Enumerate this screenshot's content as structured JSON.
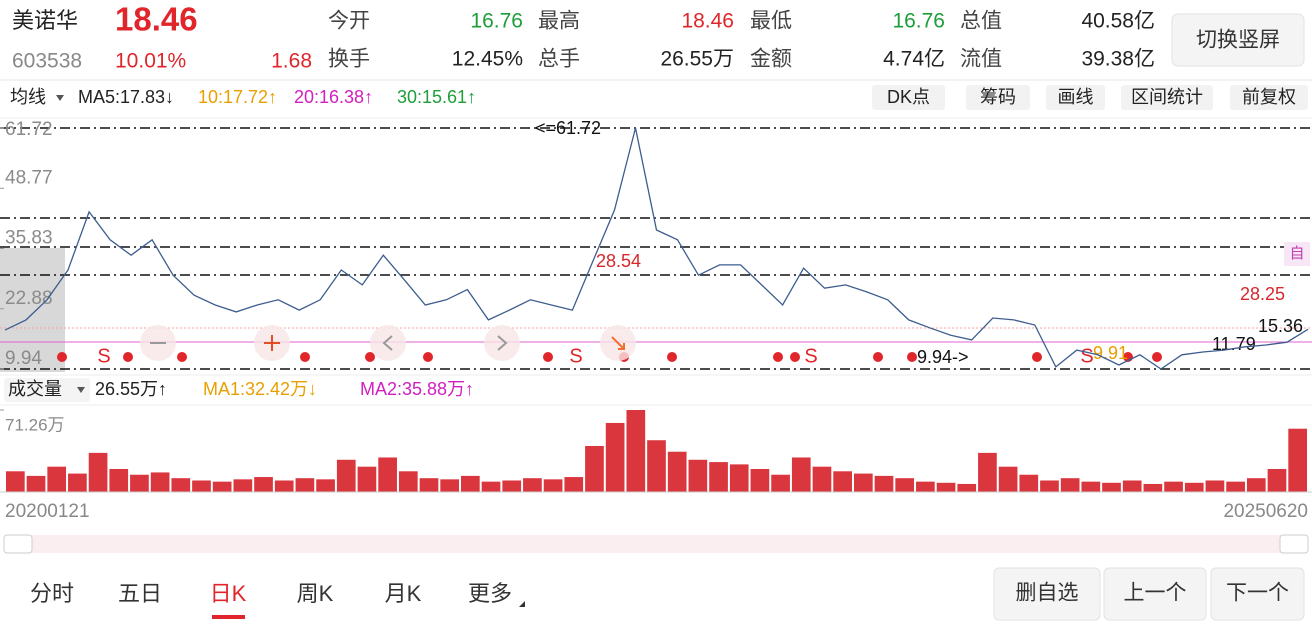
{
  "header": {
    "name": "美诺华",
    "price": "18.46",
    "code": "603538",
    "change_pct": "10.01%",
    "change": "1.68",
    "stats": [
      {
        "label": "今开",
        "value": "16.76"
      },
      {
        "label": "最高",
        "value": "18.46"
      },
      {
        "label": "最低",
        "value": "16.76"
      },
      {
        "label": "总值",
        "value": "40.58亿"
      },
      {
        "label": "换手",
        "value": "12.45%"
      },
      {
        "label": "总手",
        "value": "26.55万"
      },
      {
        "label": "金额",
        "value": "4.74亿"
      },
      {
        "label": "流值",
        "value": "39.38亿"
      }
    ],
    "switch_button": "切换竖屏"
  },
  "toolbar": {
    "ma_label": "均线",
    "ma": [
      "MA5:17.83↓",
      "10:17.72↑",
      "20:16.38↑",
      "30:15.61↑"
    ],
    "buttons": [
      "DK点",
      "筹码",
      "画线",
      "区间统计",
      "前复权"
    ]
  },
  "chart_data": [
    {
      "type": "line",
      "color": "#3d5d8f",
      "values": [
        18.3,
        20.5,
        24.8,
        31.2,
        43.7,
        37.7,
        34.4,
        37.7,
        30.1,
        25.8,
        23.7,
        22.2,
        23.7,
        24.8,
        22.6,
        24.8,
        31.2,
        28.0,
        34.4,
        29.1,
        23.7,
        24.8,
        27.0,
        20.5,
        22.6,
        24.8,
        23.7,
        22.6,
        33.4,
        44.1,
        61.72,
        39.8,
        37.7,
        30.1,
        32.3,
        32.3,
        28.0,
        23.7,
        31.6,
        27.3,
        28.0,
        26.5,
        24.8,
        20.5,
        18.8,
        17.2,
        16.2,
        20.9,
        20.5,
        19.4,
        10.4,
        14.0,
        13.0,
        10.8,
        13.0,
        9.94,
        13.0,
        13.6,
        14.0,
        14.7,
        15.1,
        15.7,
        18.46
      ],
      "ylim": [
        9.94,
        61.72
      ],
      "yticks": [
        61.72,
        48.77,
        35.83,
        22.88,
        9.94
      ],
      "annotations": [
        "<=61.72",
        "28.54",
        "9.94->",
        "9.91",
        "11.79",
        "15.36",
        "28.25",
        "自"
      ],
      "signals": [
        "S",
        "S",
        "S",
        "S"
      ]
    },
    {
      "type": "bar",
      "color": "#d9363e",
      "legend": [
        "成交量",
        "26.55万↑",
        "MA1:32.42万↓",
        "MA2:35.88万↑"
      ],
      "values": [
        18,
        14,
        22,
        16,
        34,
        20,
        15,
        17,
        12,
        10,
        9,
        11,
        13,
        10,
        12,
        11,
        28,
        22,
        30,
        18,
        12,
        11,
        14,
        9,
        10,
        12,
        11,
        13,
        40,
        60,
        71.26,
        45,
        35,
        28,
        26,
        24,
        20,
        15,
        30,
        22,
        18,
        16,
        14,
        12,
        9,
        8,
        7,
        34,
        22,
        15,
        10,
        12,
        9,
        8,
        10,
        7,
        9,
        8,
        10,
        9,
        12,
        20,
        55
      ],
      "ylim": [
        0,
        71.26
      ],
      "yticks": [
        {
          "value": 71.26,
          "label": "71.26万"
        }
      ],
      "date_range": [
        "20200121",
        "20250620"
      ]
    }
  ],
  "tabs": [
    "分时",
    "五日",
    "日K",
    "周K",
    "月K",
    "更多"
  ],
  "actions": [
    "删自选",
    "上一个",
    "下一个"
  ]
}
